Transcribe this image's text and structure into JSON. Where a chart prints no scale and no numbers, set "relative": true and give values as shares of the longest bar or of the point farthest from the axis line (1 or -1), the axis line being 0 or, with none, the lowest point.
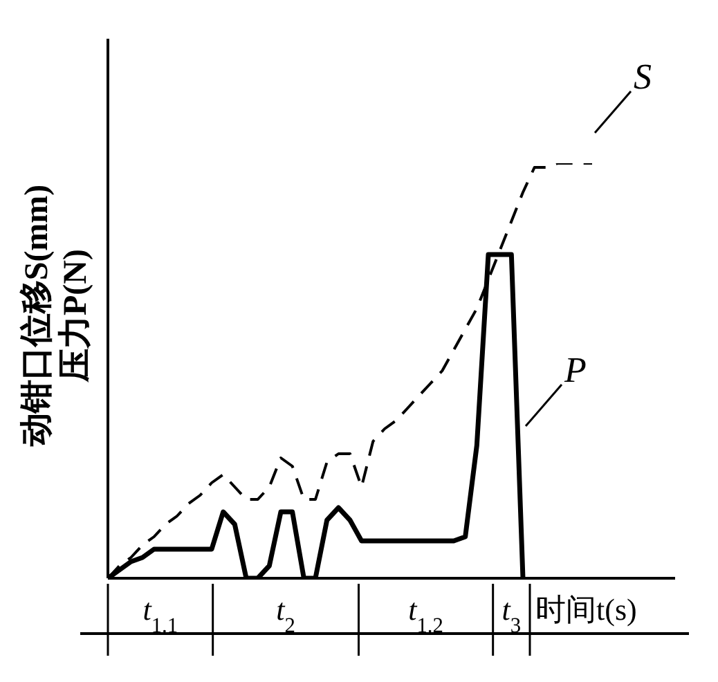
{
  "chart_data": {
    "type": "line",
    "relative": true,
    "ylabel": "动钳口位移S(mm)\n压力P(N)",
    "xlabel": "时间t(s)",
    "categories": [
      null,
      null,
      null,
      null,
      null,
      null,
      null,
      null,
      null,
      null,
      null,
      null,
      null,
      null,
      null,
      null,
      null,
      null,
      null,
      null,
      null,
      null,
      null,
      null,
      null,
      null,
      null,
      null,
      null,
      null,
      null,
      null,
      null,
      null,
      null,
      null,
      null,
      null,
      null,
      null,
      null,
      null,
      null
    ],
    "series": [
      {
        "name": "S",
        "color": "#000000",
        "line_style": "dashed",
        "values": [
          0,
          0.03,
          0.05,
          0.08,
          0.1,
          0.13,
          0.15,
          0.18,
          0.2,
          0.23,
          0.25,
          0.22,
          0.19,
          0.19,
          0.22,
          0.29,
          0.27,
          0.19,
          0.19,
          0.28,
          0.3,
          0.3,
          0.22,
          0.33,
          0.36,
          0.38,
          0.41,
          0.44,
          0.47,
          0.5,
          0.55,
          0.6,
          0.65,
          0.72,
          0.79,
          0.86,
          0.93,
          0.99,
          0.99,
          1,
          1,
          1,
          1
        ]
      },
      {
        "name": "P",
        "color": "#000000",
        "line_style": "solid",
        "values": [
          0,
          0.02,
          0.04,
          0.05,
          0.07,
          0.07,
          0.07,
          0.07,
          0.07,
          0.07,
          0.16,
          0.13,
          0,
          0,
          0.03,
          0.16,
          0.16,
          0,
          0,
          0.14,
          0.17,
          0.14,
          0.09,
          0.09,
          0.09,
          0.09,
          0.09,
          0.09,
          0.09,
          0.09,
          0.09,
          0.1,
          0.32,
          0.78,
          0.78,
          0.78,
          0,
          null,
          null,
          null,
          null,
          null,
          null
        ]
      }
    ],
    "annotations": [
      "t$_{1.1}$",
      "t$_{2}$",
      "t$_{1.2}$",
      "t$_{3}$"
    ],
    "marker": "none"
  }
}
